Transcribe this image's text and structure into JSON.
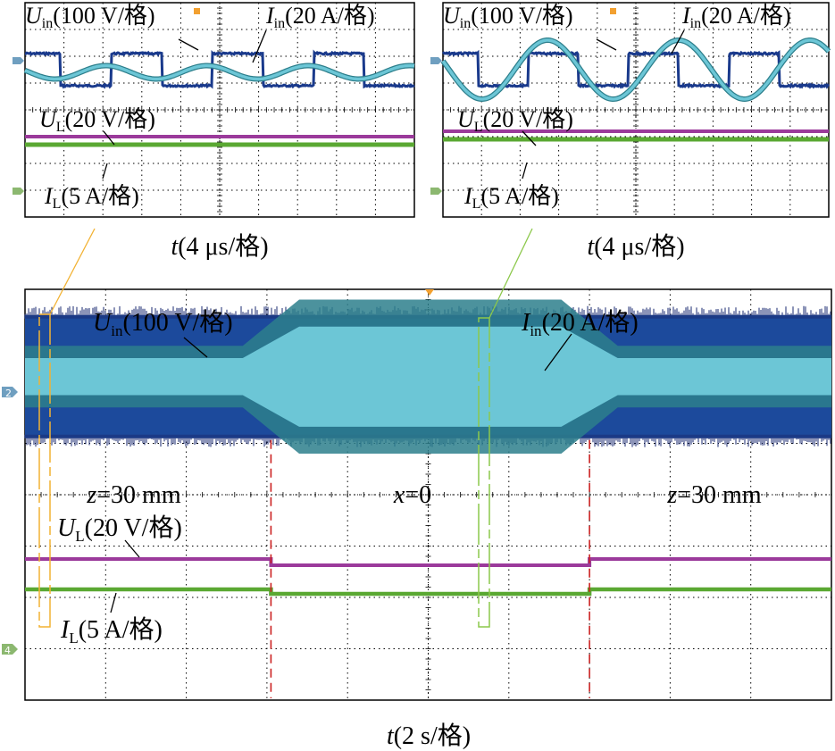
{
  "colors": {
    "uin": "#1a3a8c",
    "uin_fill": "#1c4a9c",
    "iin": "#6cc6d6",
    "iin_dark": "#2d7f8c",
    "ul": "#9b3a9b",
    "il": "#5aa832",
    "grid": "#000000",
    "callout_orange": "#f2b233",
    "callout_green": "#8cc84b",
    "marker_red": "#cc2222"
  },
  "icons": {
    "channel_markers": [
      "channel-2-marker-icon",
      "channel-3-marker-icon",
      "channel-4-marker-icon"
    ],
    "trigger_marker": "trigger-marker-icon"
  },
  "chart_data": [
    {
      "type": "line",
      "panel": "zoom-left",
      "grid_divisions": [
        10,
        8
      ],
      "xlabel": {
        "italic": "t",
        "rest": "(4 μs/格)"
      },
      "series": [
        {
          "var": "U",
          "sub": "in",
          "scale": "(100 V/格)",
          "waveform": "square",
          "amplitude_div": 1.2,
          "period_div": 2.6,
          "offset_div": 0.5
        },
        {
          "var": "I",
          "sub": "in",
          "scale": "(20 A/格)",
          "waveform": "sine",
          "amplitude_div": 0.25,
          "period_div": 2.6,
          "offset_div": 0.4
        },
        {
          "var": "U",
          "sub": "L",
          "scale": "(20 V/格)",
          "waveform": "dc",
          "level_div": -1.9
        },
        {
          "var": "I",
          "sub": "L",
          "scale": "(5 A/格)",
          "waveform": "dc",
          "level_div": -2.4
        }
      ]
    },
    {
      "type": "line",
      "panel": "zoom-right",
      "grid_divisions": [
        10,
        8
      ],
      "xlabel": {
        "italic": "t",
        "rest": "(4 μs/格)"
      },
      "series": [
        {
          "var": "U",
          "sub": "in",
          "scale": "(100 V/格)",
          "waveform": "square",
          "amplitude_div": 1.2,
          "period_div": 2.6,
          "offset_div": 0.5
        },
        {
          "var": "I",
          "sub": "in",
          "scale": "(20 A/格)",
          "waveform": "sine",
          "amplitude_div": 1.1,
          "period_div": 3.4,
          "offset_div": 0.5
        },
        {
          "var": "U",
          "sub": "L",
          "scale": "(20 V/格)",
          "waveform": "dc",
          "level_div": -1.7
        },
        {
          "var": "I",
          "sub": "L",
          "scale": "(5 A/格)",
          "waveform": "dc",
          "level_div": -2.2
        }
      ]
    },
    {
      "type": "line",
      "panel": "overview",
      "grid_divisions": [
        10,
        8
      ],
      "xlabel": {
        "italic": "t",
        "rest": "(2 s/格)"
      },
      "regions": [
        {
          "var": "z",
          "value": "=30 mm",
          "x_div": [
            0,
            3.05
          ]
        },
        {
          "var": "x",
          "value": "=0",
          "x_div": [
            3.05,
            7.0
          ]
        },
        {
          "var": "z",
          "value": "=30 mm",
          "x_div": [
            7.0,
            10
          ]
        }
      ],
      "markers_x_div": [
        3.05,
        7.0
      ],
      "series": [
        {
          "var": "U",
          "sub": "in",
          "scale": "(100 V/格)",
          "envelope_div": [
            2.4,
            4.8
          ]
        },
        {
          "var": "I",
          "sub": "in",
          "scale": "(20 A/格)",
          "envelope_div": [
            0.6,
            1.5,
            0.6
          ]
        },
        {
          "var": "U",
          "sub": "L",
          "scale": "(20 V/格)",
          "levels_div": [
            -0.6,
            -0.75,
            -0.6
          ]
        },
        {
          "var": "I",
          "sub": "L",
          "scale": "(5 A/格)",
          "levels_div": [
            -1.5,
            -1.6,
            -1.5
          ]
        }
      ]
    }
  ]
}
